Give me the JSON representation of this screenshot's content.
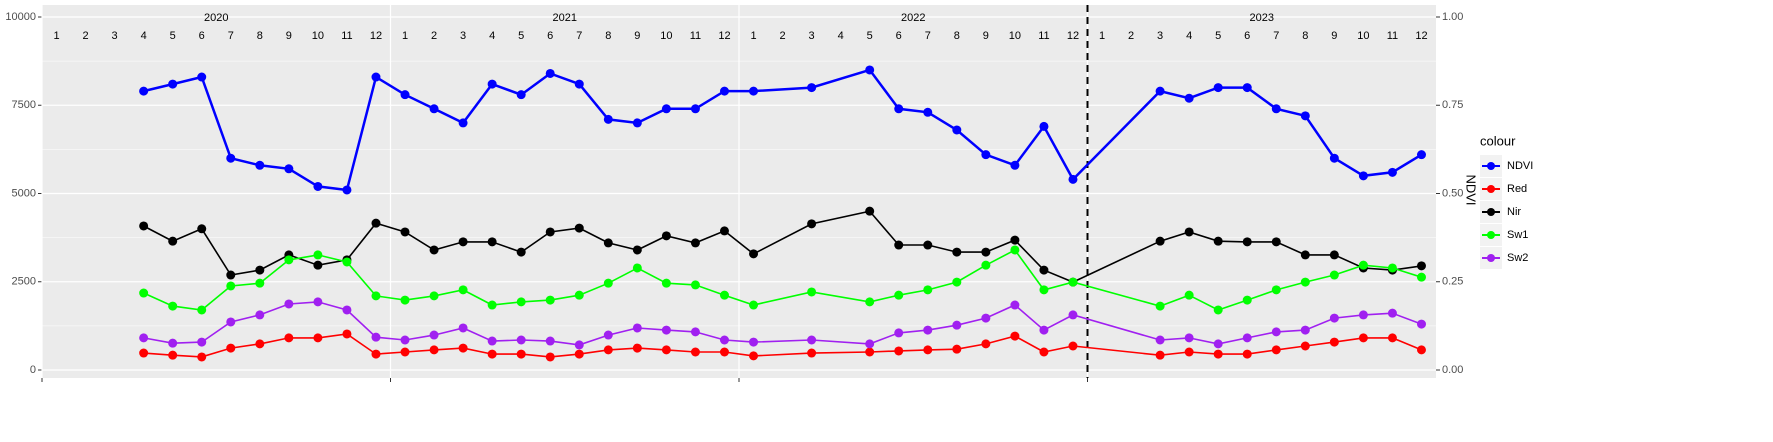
{
  "chart_data": {
    "type": "line",
    "years": [
      2020,
      2021,
      2022,
      2023
    ],
    "month_labels": [
      "1",
      "2",
      "3",
      "4",
      "5",
      "6",
      "7",
      "8",
      "9",
      "10",
      "11",
      "12"
    ],
    "xlim": [
      "2020-01",
      "2023-12"
    ],
    "vline": "2023-01",
    "ylim": [
      0,
      10000
    ],
    "yticks": [
      0,
      2500,
      5000,
      7500,
      10000
    ],
    "y2lim": [
      0,
      1
    ],
    "y2ticks": [
      {
        "value": 0,
        "label": "0.00"
      },
      {
        "value": 0.25,
        "label": "0.25"
      },
      {
        "value": 0.5,
        "label": "0.50"
      },
      {
        "value": 0.75,
        "label": "0.75"
      },
      {
        "value": 1,
        "label": "1.00"
      }
    ],
    "y2_label": "NDVI",
    "legend_title": "colour",
    "legend": "right",
    "grid": true,
    "x": [
      "2020-04",
      "2020-05",
      "2020-06",
      "2020-07",
      "2020-08",
      "2020-09",
      "2020-10",
      "2020-11",
      "2020-12",
      "2021-01",
      "2021-02",
      "2021-03",
      "2021-04",
      "2021-05",
      "2021-06",
      "2021-07",
      "2021-08",
      "2021-09",
      "2021-10",
      "2021-11",
      "2021-12",
      "2022-01",
      "2022-03",
      "2022-05",
      "2022-06",
      "2022-07",
      "2022-08",
      "2022-09",
      "2022-10",
      "2022-11",
      "2022-12",
      "2023-03",
      "2023-04",
      "2023-05",
      "2023-06",
      "2023-07",
      "2023-08",
      "2023-09",
      "2023-10",
      "2023-11",
      "2023-12"
    ],
    "series": [
      {
        "name": "NDVI",
        "color": "#0000ff",
        "axis": "y2",
        "values": [
          0.79,
          0.81,
          0.83,
          0.6,
          0.58,
          0.57,
          0.52,
          0.51,
          0.83,
          0.78,
          0.74,
          0.7,
          0.81,
          0.78,
          0.84,
          0.81,
          0.71,
          0.7,
          0.74,
          0.74,
          0.79,
          0.79,
          0.8,
          0.85,
          0.74,
          0.73,
          0.68,
          0.61,
          0.58,
          0.69,
          0.54,
          0.79,
          0.77,
          0.8,
          0.8,
          0.74,
          0.72,
          0.6,
          0.55,
          0.56,
          0.61
        ]
      },
      {
        "name": "Red",
        "color": "#ff0000",
        "values": [
          480,
          420,
          370,
          620,
          740,
          910,
          910,
          1020,
          450,
          510,
          570,
          620,
          450,
          450,
          370,
          450,
          570,
          620,
          570,
          510,
          510,
          400,
          480,
          510,
          540,
          570,
          590,
          740,
          960,
          510,
          680,
          420,
          510,
          450,
          450,
          570,
          680,
          790,
          910,
          910,
          570
        ]
      },
      {
        "name": "Nir",
        "color": "#000000",
        "values": [
          4080,
          3650,
          4000,
          2690,
          2830,
          3260,
          2970,
          3120,
          4160,
          3910,
          3400,
          3630,
          3630,
          3340,
          3910,
          4020,
          3600,
          3400,
          3800,
          3600,
          3940,
          3290,
          4140,
          4500,
          3540,
          3540,
          3340,
          3340,
          3680,
          2830,
          2490,
          3650,
          3910,
          3650,
          3630,
          3630,
          3260,
          3260,
          2890,
          2830,
          2950
        ]
      },
      {
        "name": "Sw1",
        "color": "#00ff00",
        "values": [
          2180,
          1810,
          1700,
          2380,
          2460,
          3120,
          3260,
          3060,
          2100,
          1980,
          2100,
          2270,
          1840,
          1930,
          1980,
          2120,
          2460,
          2890,
          2460,
          2410,
          2120,
          1840,
          2210,
          1930,
          2120,
          2270,
          2490,
          2970,
          3400,
          2270,
          2490,
          1810,
          2120,
          1700,
          1980,
          2270,
          2490,
          2690,
          2970,
          2890,
          2630
        ]
      },
      {
        "name": "Sw2",
        "color": "#a020f0",
        "values": [
          910,
          760,
          790,
          1360,
          1560,
          1870,
          1930,
          1700,
          930,
          850,
          990,
          1190,
          820,
          850,
          820,
          710,
          990,
          1190,
          1130,
          1080,
          850,
          790,
          850,
          740,
          1050,
          1130,
          1270,
          1470,
          1840,
          1130,
          1560,
          850,
          910,
          740,
          910,
          1080,
          1130,
          1470,
          1560,
          1610,
          1300
        ]
      }
    ]
  }
}
